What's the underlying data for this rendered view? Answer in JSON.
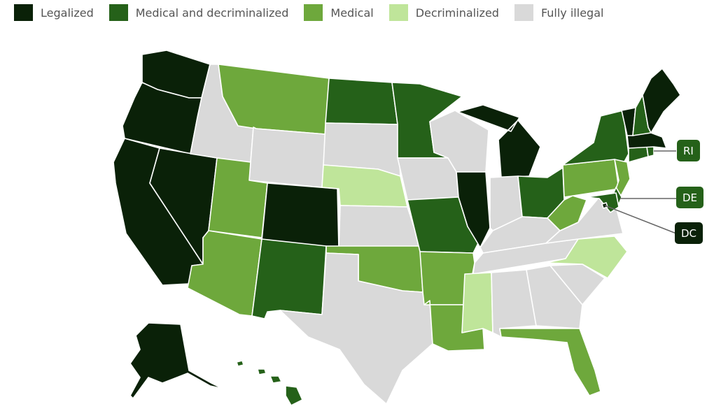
{
  "legend": [
    {
      "label": "Legalized",
      "color": "#0a2108"
    },
    {
      "label": "Medical and decriminalized",
      "color": "#256119"
    },
    {
      "label": "Medical",
      "color": "#6ea83c"
    },
    {
      "label": "Decriminalized",
      "color": "#bfe59a"
    },
    {
      "label": "Fully illegal",
      "color": "#d9d9d9"
    }
  ],
  "colors": {
    "legalized": "#0a2108",
    "medical_decrim": "#256119",
    "medical": "#6ea83c",
    "decrim": "#bfe59a",
    "illegal": "#d9d9d9"
  },
  "callouts": {
    "ri": "RI",
    "de": "DE",
    "dc": "DC"
  },
  "states": {
    "WA": "legalized",
    "OR": "legalized",
    "CA": "legalized",
    "NV": "legalized",
    "CO": "legalized",
    "AK": "legalized",
    "MI": "legalized",
    "IL": "legalized",
    "VT": "legalized",
    "ME": "legalized",
    "MA": "legalized",
    "DC": "legalized",
    "ND": "medical_decrim",
    "MN": "medical_decrim",
    "NM": "medical_decrim",
    "MO": "medical_decrim",
    "OH": "medical_decrim",
    "NY": "medical_decrim",
    "NH": "medical_decrim",
    "CT": "medical_decrim",
    "RI": "medical_decrim",
    "DE": "medical_decrim",
    "MD": "medical_decrim",
    "HI": "medical_decrim",
    "MT": "medical",
    "UT": "medical",
    "AZ": "medical",
    "OK": "medical",
    "AR": "medical",
    "LA": "medical",
    "FL": "medical",
    "PA": "medical",
    "WV": "medical",
    "NJ": "medical",
    "NE": "decrim",
    "MS": "decrim",
    "NC": "decrim",
    "ID": "illegal",
    "WY": "illegal",
    "SD": "illegal",
    "KS": "illegal",
    "TX": "illegal",
    "IA": "illegal",
    "WI": "illegal",
    "IN": "illegal",
    "KY": "illegal",
    "TN": "illegal",
    "AL": "illegal",
    "GA": "illegal",
    "SC": "illegal",
    "VA": "illegal"
  }
}
